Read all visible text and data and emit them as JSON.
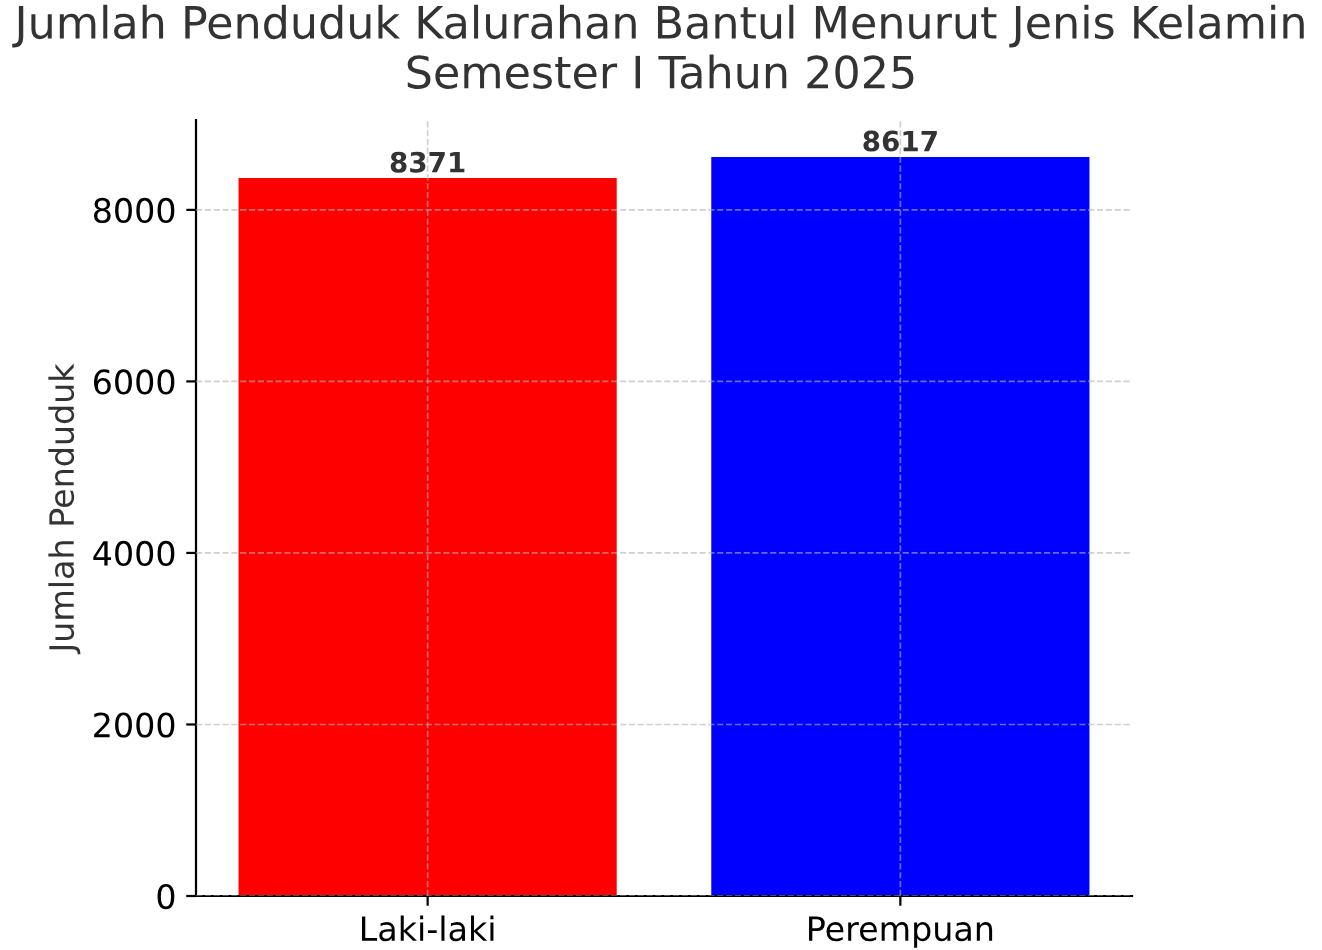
{
  "chart_data": {
    "type": "bar",
    "title": "Jumlah Penduduk Kalurahan Bantul Menurut Jenis Kelamin\nSemester I Tahun 2025",
    "ylabel": "Jumlah Penduduk",
    "categories": [
      "Laki-laki",
      "Perempuan"
    ],
    "values": [
      8371,
      8617
    ],
    "colors": [
      "#ff0000",
      "#0000ff"
    ],
    "ylim": [
      0,
      9048
    ],
    "yticks": [
      0,
      2000,
      4000,
      6000,
      8000
    ],
    "grid": true,
    "line_style": "dashed",
    "data_labels": true
  }
}
